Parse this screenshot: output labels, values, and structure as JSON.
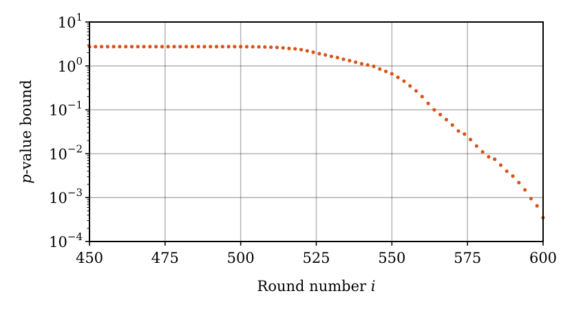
{
  "chart_data": {
    "type": "scatter",
    "xlabel_text": "Round number ",
    "xlabel_var": "i",
    "ylabel_var": "p",
    "ylabel_text": "-value bound",
    "xlim": [
      450,
      600
    ],
    "ylim": [
      0.0001,
      10
    ],
    "yscale": "log",
    "grid": true,
    "marker_color": "#d95319",
    "xticks": [
      {
        "value": 450,
        "label": "450"
      },
      {
        "value": 475,
        "label": "475"
      },
      {
        "value": 500,
        "label": "500"
      },
      {
        "value": 525,
        "label": "525"
      },
      {
        "value": 550,
        "label": "550"
      },
      {
        "value": 575,
        "label": "575"
      },
      {
        "value": 600,
        "label": "600"
      }
    ],
    "yticks": [
      {
        "value": 10,
        "base": "10",
        "exp": "1"
      },
      {
        "value": 1,
        "base": "10",
        "exp": "0"
      },
      {
        "value": 0.1,
        "base": "10",
        "exp": "−1"
      },
      {
        "value": 0.01,
        "base": "10",
        "exp": "−2"
      },
      {
        "value": 0.001,
        "base": "10",
        "exp": "−3"
      },
      {
        "value": 0.0001,
        "base": "10",
        "exp": "−4"
      }
    ],
    "series": [
      {
        "x": [
          450,
          452,
          454,
          456,
          458,
          460,
          462,
          464,
          466,
          468,
          470,
          472,
          474,
          476,
          478,
          480,
          482,
          484,
          486,
          488,
          490,
          492,
          494,
          496,
          498,
          500,
          502,
          504,
          506,
          508,
          510,
          512,
          514,
          516,
          518,
          520,
          522,
          524,
          526,
          528,
          530,
          532,
          534,
          536,
          538,
          540,
          542,
          544,
          546,
          548,
          550,
          552,
          554,
          556,
          558,
          560,
          562,
          564,
          566,
          568,
          570,
          572,
          574,
          576,
          578,
          580,
          582,
          584,
          586,
          588,
          590,
          592,
          594,
          596,
          598,
          600
        ],
        "y": [
          2.75,
          2.75,
          2.75,
          2.75,
          2.75,
          2.75,
          2.75,
          2.75,
          2.75,
          2.75,
          2.75,
          2.75,
          2.75,
          2.75,
          2.75,
          2.75,
          2.75,
          2.75,
          2.75,
          2.75,
          2.75,
          2.75,
          2.75,
          2.75,
          2.75,
          2.75,
          2.74,
          2.73,
          2.72,
          2.7,
          2.67,
          2.64,
          2.58,
          2.5,
          2.45,
          2.35,
          2.2,
          2.05,
          1.9,
          1.78,
          1.65,
          1.55,
          1.42,
          1.32,
          1.22,
          1.12,
          1.05,
          0.98,
          0.85,
          0.75,
          0.66,
          0.55,
          0.45,
          0.35,
          0.27,
          0.2,
          0.14,
          0.1,
          0.078,
          0.06,
          0.045,
          0.033,
          0.028,
          0.021,
          0.015,
          0.011,
          0.0085,
          0.0075,
          0.0055,
          0.004,
          0.0031,
          0.0022,
          0.0015,
          0.00095,
          0.00065,
          0.00035
        ]
      }
    ]
  }
}
